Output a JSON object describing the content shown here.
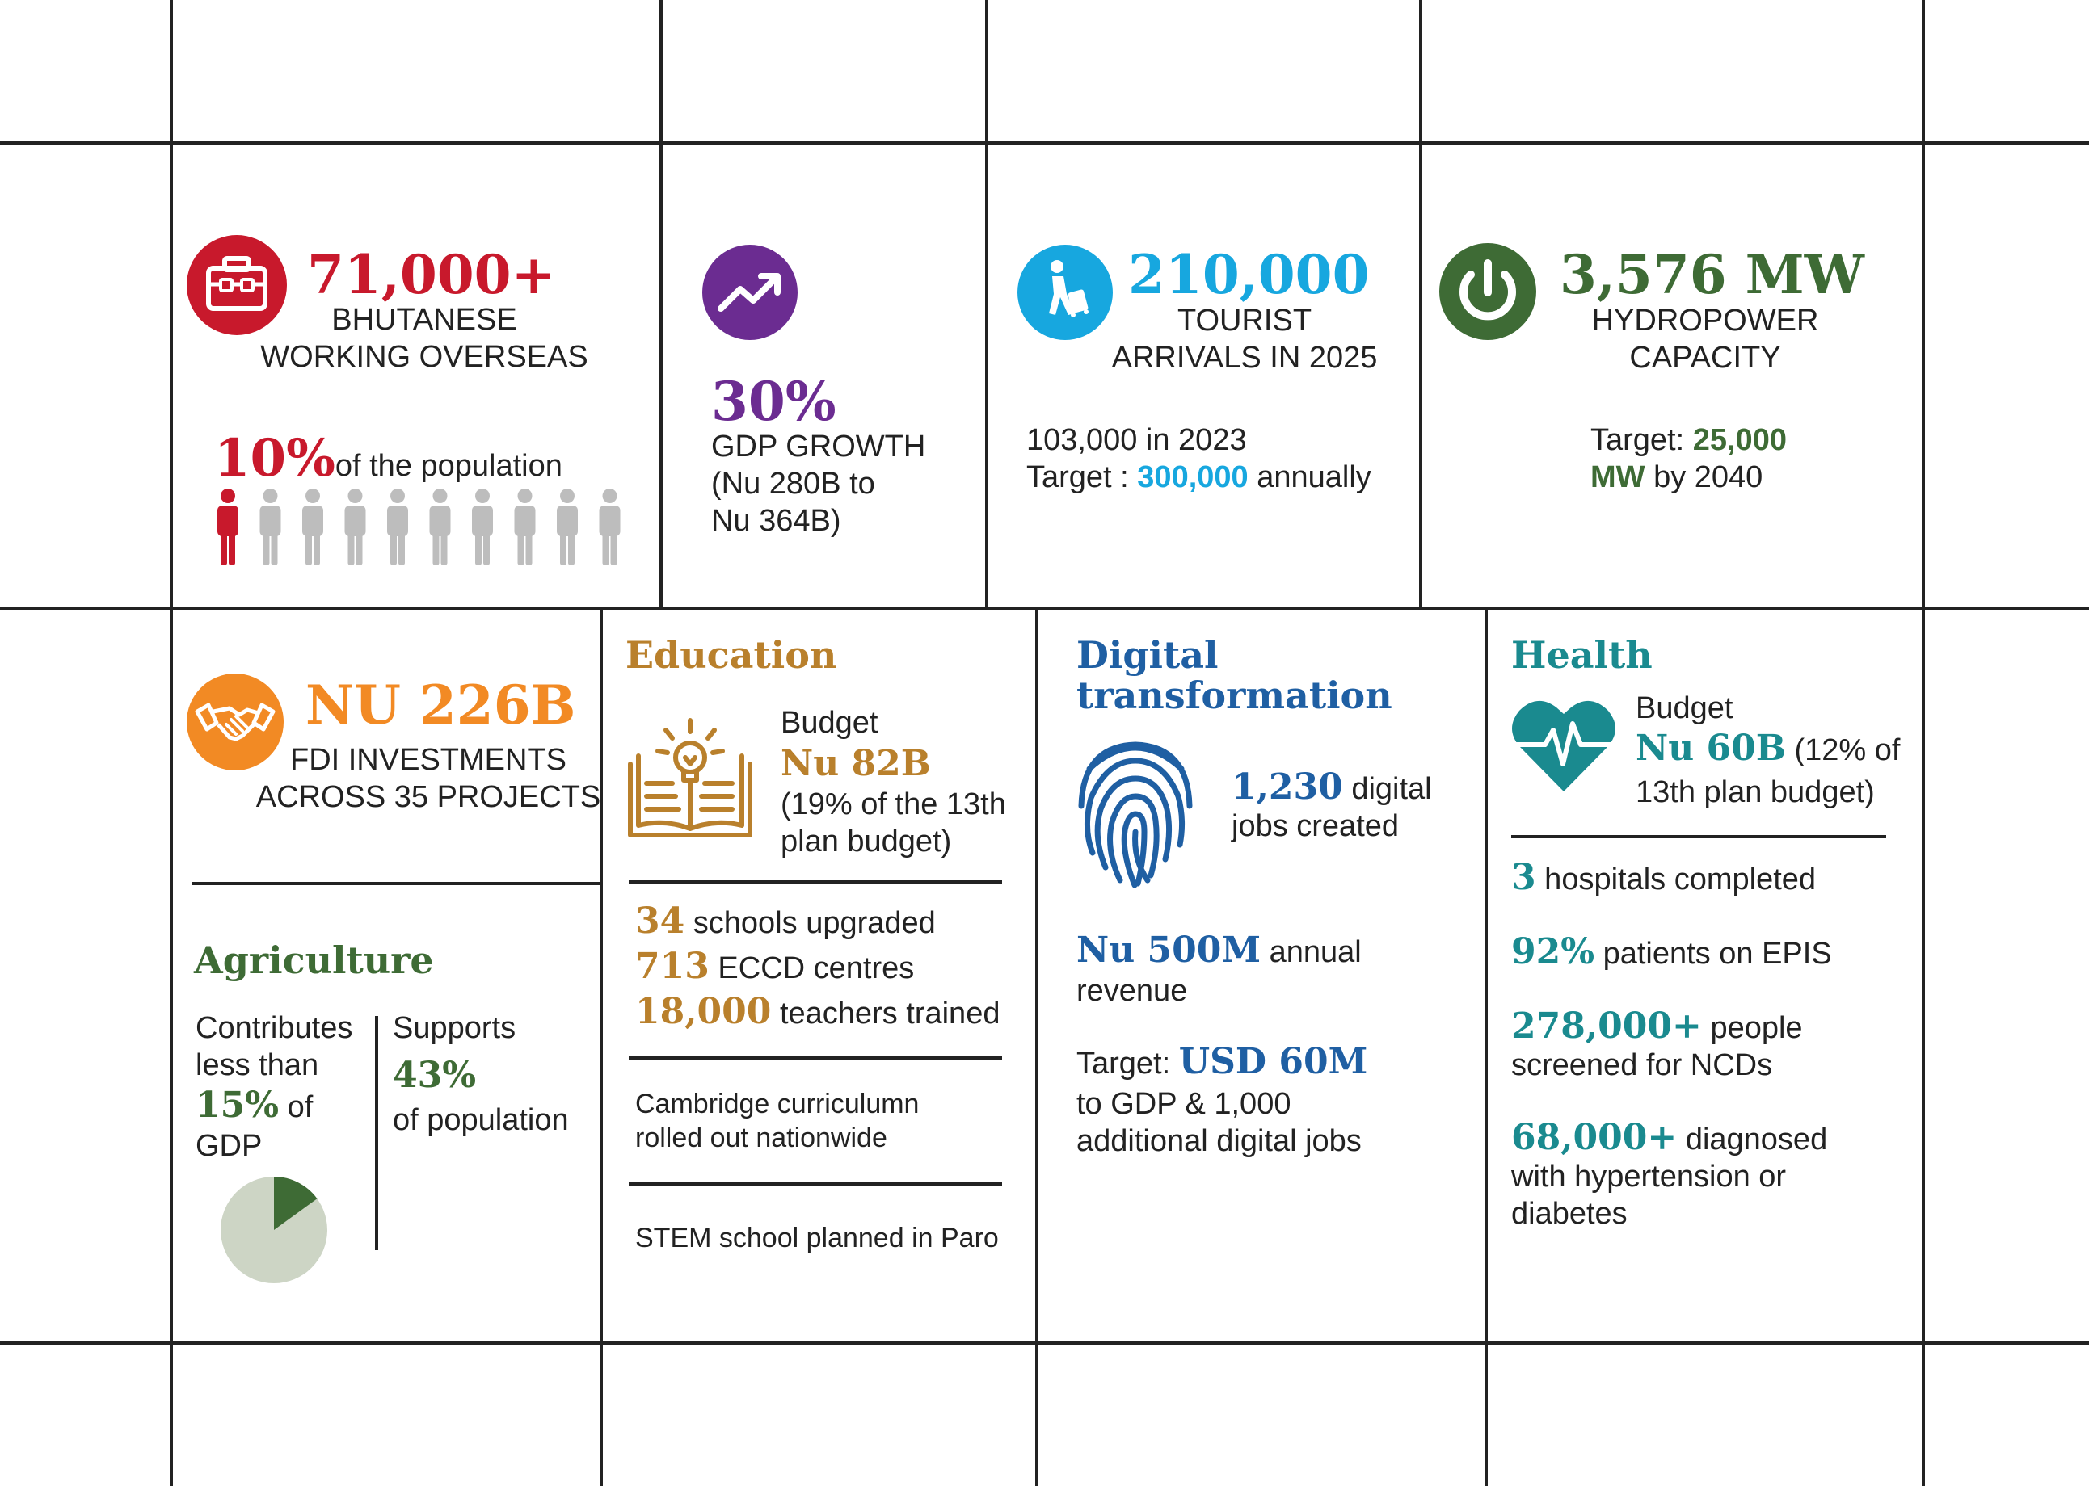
{
  "overseas": {
    "value": "71,000+",
    "label_line1": "BHUTANESE",
    "label_line2": "WORKING OVERSEAS",
    "percent": "10%",
    "percent_text": "of the population",
    "share_of_population": 0.1,
    "icon": "briefcase-icon",
    "color": "#c8192c"
  },
  "gdp": {
    "value": "30%",
    "label": "GDP GROWTH",
    "detail_line1": "(Nu 280B to",
    "detail_line2": "Nu 364B)",
    "icon": "trending-up-icon",
    "color": "#6b2c91"
  },
  "tourism": {
    "value": "210,000",
    "label_line1": "TOURIST",
    "label_line2": "ARRIVALS IN 2025",
    "line1": "103,000 in 2023",
    "target_prefix": "Target : ",
    "target_value": "300,000",
    "target_suffix": " annually",
    "icon": "traveler-icon",
    "color": "#17a7df"
  },
  "hydro": {
    "value": "3,576 MW",
    "label_line1": "HYDROPOWER",
    "label_line2": "CAPACITY",
    "target_prefix": "Target: ",
    "target_value_line1": "25,000",
    "target_value_line2": "MW",
    "target_suffix": " by 2040",
    "icon": "power-icon",
    "color": "#3e6b35"
  },
  "fdi": {
    "value": "NU 226B",
    "label_line1": "FDI INVESTMENTS",
    "label_line2": "ACROSS 35 PROJECTS",
    "icon": "handshake-icon",
    "color": "#f28a24"
  },
  "agriculture": {
    "title": "Agriculture",
    "left_line1": "Contributes",
    "left_line2": "less than",
    "left_value": "15%",
    "left_suffix": " of",
    "left_line4": "GDP",
    "right_line1": "Supports",
    "right_value": "43%",
    "right_line3": "of population",
    "gdp_share": 0.15,
    "color": "#3e6b35"
  },
  "education": {
    "title": "Education",
    "budget_label": "Budget",
    "budget_value": "Nu 82B",
    "budget_detail_line1": "(19% of the 13th",
    "budget_detail_line2": "plan budget)",
    "stats": [
      {
        "value": "34",
        "text": " schools upgraded"
      },
      {
        "value": "713",
        "text": " ECCD centres"
      },
      {
        "value": "18,000",
        "text": " teachers trained"
      }
    ],
    "note1_line1": "Cambridge curriculumn",
    "note1_line2": "rolled out nationwide",
    "note2": "STEM school planned in Paro",
    "icon": "book-lightbulb-icon",
    "color": "#b9802c"
  },
  "digital": {
    "title_line1": "Digital",
    "title_line2": "transformation",
    "jobs_value": "1,230",
    "jobs_text1": " digital",
    "jobs_text2": "jobs created",
    "revenue_value": "Nu 500M",
    "revenue_text1": " annual",
    "revenue_text2": "revenue",
    "target_prefix": "Target: ",
    "target_value": "USD 60M",
    "target_line2": "to GDP & 1,000",
    "target_line3": "additional digital jobs",
    "icon": "fingerprint-icon",
    "color": "#1f5fa3"
  },
  "health": {
    "title": "Health",
    "budget_label": "Budget",
    "budget_value": "Nu 60B",
    "budget_detail1": " (12% of",
    "budget_detail2": "13th plan budget)",
    "stats": [
      {
        "value": "3",
        "text1": " hospitals completed",
        "text2": "",
        "text3": ""
      },
      {
        "value": "92%",
        "text1": " patients on EPIS",
        "text2": "",
        "text3": ""
      },
      {
        "value": "278,000+",
        "text1": " people",
        "text2": "screened for NCDs",
        "text3": ""
      },
      {
        "value": "68,000+",
        "text1": " diagnosed",
        "text2": "with hypertension or",
        "text3": "diabetes"
      }
    ],
    "icon": "heart-pulse-icon",
    "color": "#1a8a8f"
  }
}
